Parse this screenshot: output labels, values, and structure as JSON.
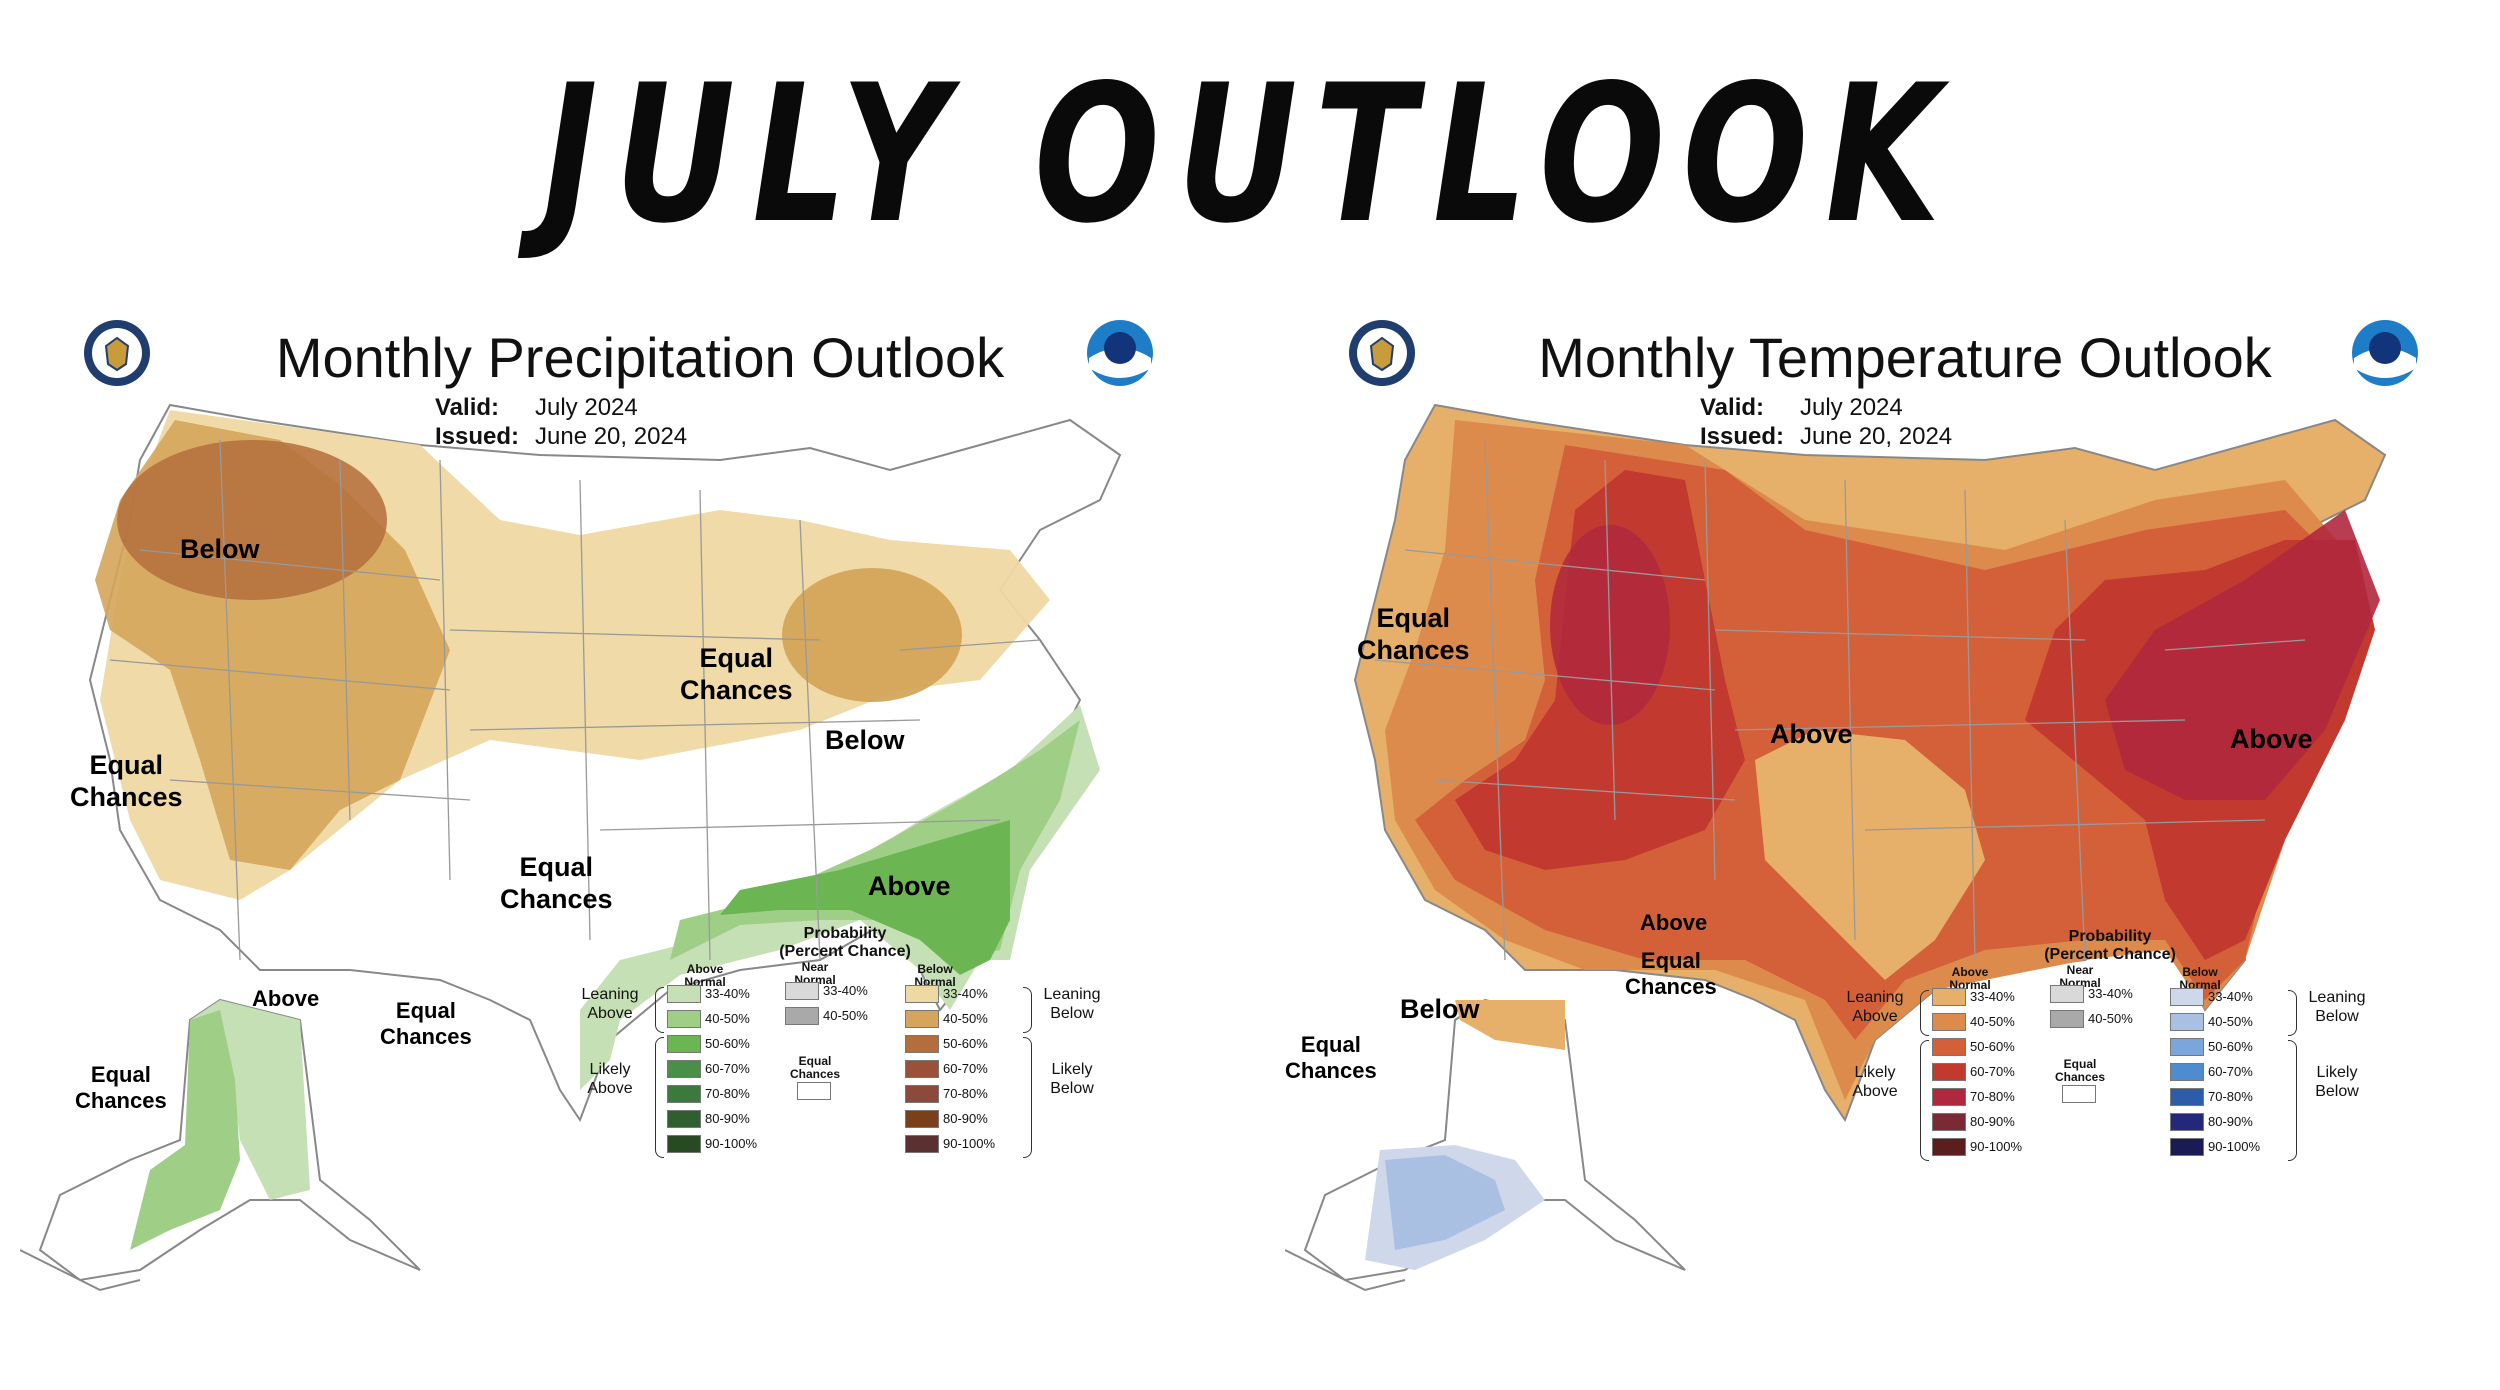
{
  "banner": {
    "title": "JULY OUTLOOK"
  },
  "precip": {
    "title": "Monthly Precipitation Outlook",
    "valid_label": "Valid:",
    "valid_value": "July 2024",
    "issued_label": "Issued:",
    "issued_value": "June 20, 2024",
    "regions": {
      "below_nw": "Below",
      "below_ohio": "Below",
      "above_se": "Above",
      "above_ak": "Above",
      "equal_north_1": "Equal",
      "equal_north_2": "Chances",
      "equal_west_1": "Equal",
      "equal_west_2": "Chances",
      "equal_tx_1": "Equal",
      "equal_tx_2": "Chances",
      "equal_ak_1": "Equal",
      "equal_ak_2": "Chances",
      "equal_aleut_1": "Equal",
      "equal_aleut_2": "Chances"
    },
    "legend": {
      "title_1": "Probability",
      "title_2": "(Percent Chance)",
      "col_above_1": "Above",
      "col_above_2": "Normal",
      "col_near_1": "Near",
      "col_near_2": "Normal",
      "col_below_1": "Below",
      "col_below_2": "Normal",
      "leaning_above_1": "Leaning",
      "leaning_above_2": "Above",
      "likely_above_1": "Likely",
      "likely_above_2": "Above",
      "leaning_below_1": "Leaning",
      "leaning_below_2": "Below",
      "likely_below_1": "Likely",
      "likely_below_2": "Below",
      "equal_1": "Equal",
      "equal_2": "Chances",
      "ranges": [
        "33-40%",
        "40-50%",
        "50-60%",
        "60-70%",
        "70-80%",
        "80-90%",
        "90-100%"
      ],
      "near_ranges": [
        "33-40%",
        "40-50%"
      ],
      "above_colors": [
        "#c5e0b5",
        "#9fce87",
        "#6cb553",
        "#4a8f48",
        "#3b7a3c",
        "#2f5e30",
        "#274a22"
      ],
      "near_colors": [
        "#d9d9d9",
        "#a9a9a9"
      ],
      "below_colors": [
        "#efd9a3",
        "#d4a55a",
        "#b46d3c",
        "#9a5138",
        "#8c4a3c",
        "#7b3f1a",
        "#5a3030"
      ]
    }
  },
  "temp": {
    "title": "Monthly Temperature Outlook",
    "valid_label": "Valid:",
    "valid_value": "July 2024",
    "issued_label": "Issued:",
    "issued_value": "June 20, 2024",
    "regions": {
      "above_central": "Above",
      "above_east": "Above",
      "above_ak": "Above",
      "below_ak": "Below",
      "equal_nw_1": "Equal",
      "equal_nw_2": "Chances",
      "equal_ak_1": "Equal",
      "equal_ak_2": "Chances",
      "equal_aleut_1": "Equal",
      "equal_aleut_2": "Chances"
    },
    "legend": {
      "title_1": "Probability",
      "title_2": "(Percent Chance)",
      "col_above_1": "Above",
      "col_above_2": "Normal",
      "col_near_1": "Near",
      "col_near_2": "Normal",
      "col_below_1": "Below",
      "col_below_2": "Normal",
      "leaning_above_1": "Leaning",
      "leaning_above_2": "Above",
      "likely_above_1": "Likely",
      "likely_above_2": "Above",
      "leaning_below_1": "Leaning",
      "leaning_below_2": "Below",
      "likely_below_1": "Likely",
      "likely_below_2": "Below",
      "equal_1": "Equal",
      "equal_2": "Chances",
      "ranges": [
        "33-40%",
        "40-50%",
        "50-60%",
        "60-70%",
        "70-80%",
        "80-90%",
        "90-100%"
      ],
      "near_ranges": [
        "33-40%",
        "40-50%"
      ],
      "above_colors": [
        "#e6b06a",
        "#dd8b4d",
        "#d4603a",
        "#c2392f",
        "#b0283d",
        "#7a2a34",
        "#5a1e1e"
      ],
      "near_colors": [
        "#d9d9d9",
        "#a9a9a9"
      ],
      "below_colors": [
        "#cfd7ea",
        "#a9c0e3",
        "#7aa6dc",
        "#4f8bd0",
        "#2d5ca8",
        "#23287a",
        "#1a1a55"
      ]
    }
  }
}
